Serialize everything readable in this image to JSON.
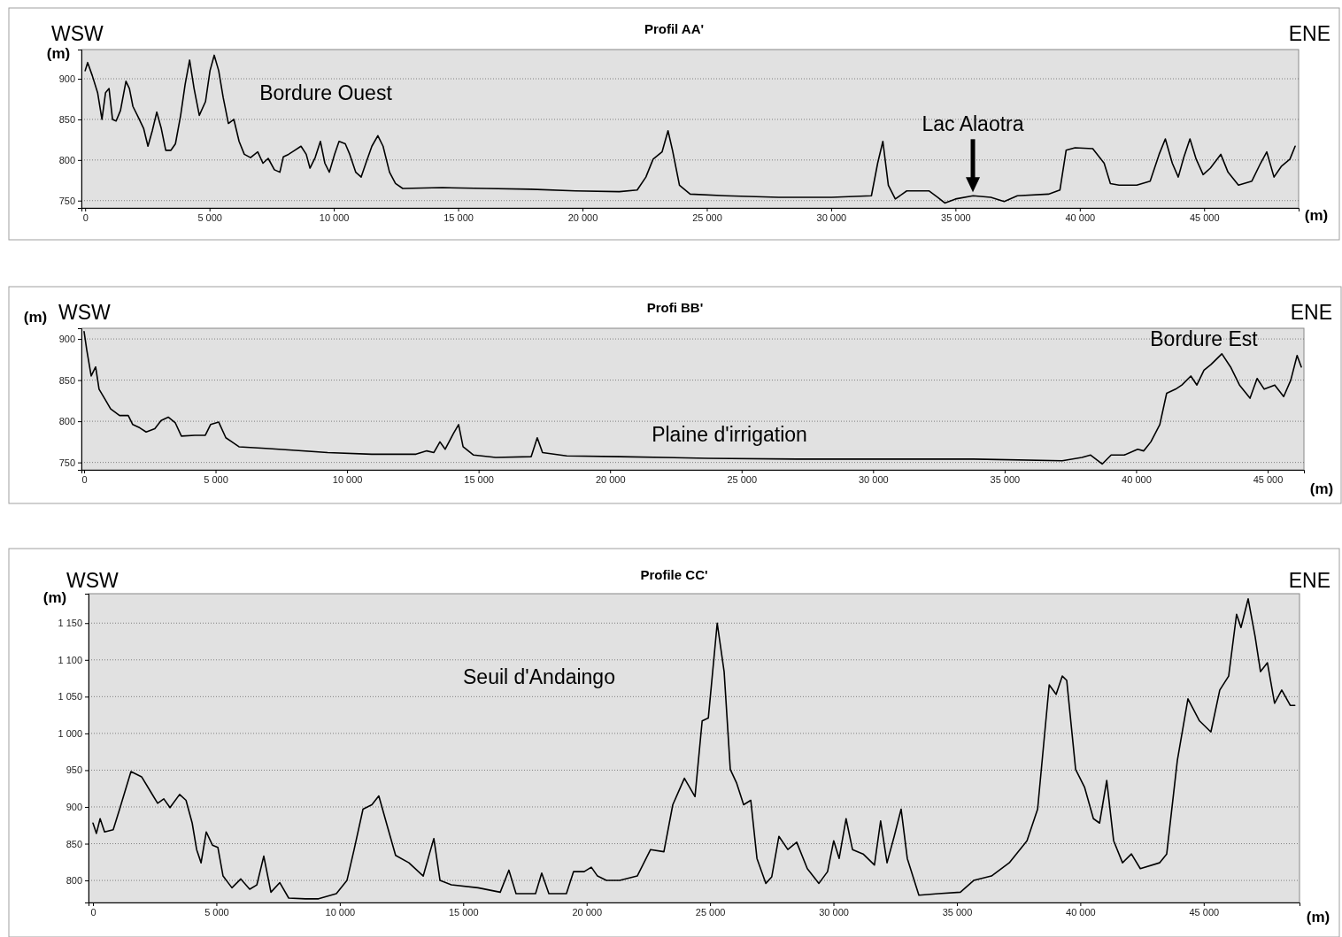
{
  "chart_data": [
    {
      "type": "line",
      "title": "Profil AA'",
      "ylabel": "(m)",
      "xlabel": "(m)",
      "grid": "y",
      "annotations": [
        "WSW",
        "ENE",
        "Bordure Ouest",
        {
          "text": "Lac Alaotra",
          "x": 35700,
          "y": 757
        }
      ],
      "xlim": [
        -150,
        48800
      ],
      "ylim": [
        741,
        936
      ],
      "xticks": [
        {
          "value": 0,
          "label": "0"
        },
        {
          "value": 5000,
          "label": "5 000"
        },
        {
          "value": 10000,
          "label": "10 000"
        },
        {
          "value": 15000,
          "label": "15 000"
        },
        {
          "value": 20000,
          "label": "20 000"
        },
        {
          "value": 25000,
          "label": "25 000"
        },
        {
          "value": 30000,
          "label": "30 000"
        },
        {
          "value": 35000,
          "label": "35 000"
        },
        {
          "value": 40000,
          "label": "40 000"
        },
        {
          "value": 45000,
          "label": "45 000"
        }
      ],
      "yticks": [
        750,
        800,
        850,
        900
      ],
      "series": [
        {
          "color": "#000000",
          "x": [
            0,
            100,
            285,
            500,
            675,
            820,
            960,
            1100,
            1245,
            1420,
            1640,
            1780,
            1920,
            2130,
            2350,
            2525,
            2700,
            2880,
            3060,
            3240,
            3450,
            3630,
            3840,
            4020,
            4200,
            4380,
            4590,
            4840,
            5020,
            5190,
            5370,
            5550,
            5760,
            5980,
            6190,
            6400,
            6650,
            6940,
            7150,
            7360,
            7610,
            7830,
            7970,
            8180,
            8430,
            8680,
            8890,
            9040,
            9250,
            9460,
            9640,
            9820,
            10030,
            10210,
            10460,
            10640,
            10880,
            11100,
            11310,
            11530,
            11770,
            11980,
            12240,
            12480,
            12770,
            14370,
            16150,
            17930,
            19710,
            21480,
            22200,
            22550,
            22840,
            23200,
            23440,
            23620,
            23900,
            24330,
            25750,
            27890,
            30020,
            31620,
            31870,
            32080,
            32300,
            32580,
            33040,
            33930,
            34290,
            34570,
            35000,
            35710,
            36420,
            36960,
            37490,
            38740,
            39200,
            39450,
            39810,
            40520,
            40980,
            41230,
            41580,
            42290,
            42830,
            43190,
            43440,
            43720,
            43960,
            44180,
            44430,
            44680,
            44960,
            45250,
            45670,
            45960,
            46380,
            46920,
            47270,
            47520,
            47810,
            48100,
            48450,
            48660
          ],
          "values": [
            910,
            920,
            904,
            883,
            850,
            883,
            888,
            850,
            848,
            861,
            897,
            888,
            866,
            853,
            839,
            817,
            836,
            859,
            839,
            812,
            812,
            820,
            855,
            893,
            923,
            888,
            855,
            872,
            910,
            929,
            910,
            877,
            845,
            850,
            823,
            807,
            803,
            810,
            796,
            802,
            788,
            785,
            804,
            807,
            812,
            817,
            807,
            790,
            803,
            823,
            796,
            785,
            807,
            823,
            820,
            807,
            785,
            779,
            798,
            817,
            830,
            817,
            785,
            771,
            765,
            766,
            765,
            764,
            762,
            761,
            763,
            779,
            801,
            810,
            836,
            812,
            769,
            758,
            756,
            754,
            754,
            756,
            796,
            823,
            769,
            752,
            762,
            762,
            754,
            747,
            752,
            756,
            754,
            749,
            756,
            758,
            763,
            812,
            815,
            814,
            796,
            771,
            769,
            769,
            774,
            807,
            826,
            796,
            779,
            803,
            826,
            801,
            782,
            790,
            807,
            785,
            769,
            774,
            796,
            810,
            779,
            792,
            801,
            817
          ]
        }
      ]
    },
    {
      "type": "line",
      "title": "Profi BB'",
      "ylabel": "(m)",
      "xlabel": "(m)",
      "grid": "y",
      "annotations": [
        "WSW",
        "ENE",
        "Bordure Est",
        "Plaine d'irrigation"
      ],
      "xlim": [
        -100,
        46380
      ],
      "ylim": [
        741,
        913
      ],
      "xticks": [
        {
          "value": 0,
          "label": "0"
        },
        {
          "value": 5000,
          "label": "5 000"
        },
        {
          "value": 10000,
          "label": "10 000"
        },
        {
          "value": 15000,
          "label": "15 000"
        },
        {
          "value": 20000,
          "label": "20 000"
        },
        {
          "value": 25000,
          "label": "25 000"
        },
        {
          "value": 30000,
          "label": "30 000"
        },
        {
          "value": 35000,
          "label": "35 000"
        },
        {
          "value": 40000,
          "label": "40 000"
        },
        {
          "value": 45000,
          "label": "45 000"
        }
      ],
      "yticks": [
        750,
        800,
        850,
        900
      ],
      "series": [
        {
          "color": "#000000",
          "x": [
            0,
            100,
            270,
            440,
            570,
            775,
            1010,
            1350,
            1680,
            1850,
            2120,
            2360,
            2690,
            2930,
            3200,
            3470,
            3700,
            4210,
            4610,
            4810,
            5120,
            5390,
            5620,
            5890,
            6900,
            7910,
            9260,
            10940,
            12620,
            13030,
            13300,
            13530,
            13730,
            14040,
            14240,
            14410,
            14810,
            15650,
            17000,
            17230,
            17430,
            18350,
            20360,
            23730,
            27100,
            30460,
            33830,
            37190,
            37940,
            38270,
            38710,
            39050,
            39550,
            40060,
            40290,
            40560,
            40900,
            41160,
            41500,
            41740,
            42080,
            42310,
            42580,
            42850,
            43260,
            43590,
            43930,
            44330,
            44600,
            44870,
            45270,
            45610,
            45880,
            46120,
            46280
          ],
          "values": [
            909,
            887,
            855,
            866,
            839,
            828,
            815,
            807,
            807,
            796,
            792,
            787,
            791,
            801,
            805,
            798,
            782,
            783,
            783,
            796,
            799,
            780,
            775,
            769,
            767,
            765,
            762,
            760,
            760,
            764,
            762,
            775,
            766,
            785,
            796,
            769,
            759,
            756,
            757,
            780,
            762,
            758,
            757,
            755,
            754,
            754,
            754,
            752,
            756,
            759,
            748,
            759,
            759,
            766,
            764,
            775,
            796,
            834,
            839,
            844,
            855,
            844,
            862,
            869,
            882,
            866,
            844,
            828,
            852,
            839,
            844,
            830,
            850,
            880,
            866
          ]
        }
      ]
    },
    {
      "type": "line",
      "title": "Profile CC'",
      "ylabel": "(m)",
      "xlabel": "(m)",
      "grid": "y",
      "annotations": [
        "WSW",
        "ENE",
        "Seuil d'Andaingo"
      ],
      "xlim": [
        -180,
        48880
      ],
      "ylim": [
        770,
        1190
      ],
      "xticks": [
        {
          "value": 0,
          "label": "0"
        },
        {
          "value": 5000,
          "label": "5 000"
        },
        {
          "value": 10000,
          "label": "10 000"
        },
        {
          "value": 15000,
          "label": "15 000"
        },
        {
          "value": 20000,
          "label": "20 000"
        },
        {
          "value": 25000,
          "label": "25 000"
        },
        {
          "value": 30000,
          "label": "30 000"
        },
        {
          "value": 35000,
          "label": "35 000"
        },
        {
          "value": 40000,
          "label": "40 000"
        },
        {
          "value": 45000,
          "label": "45 000"
        }
      ],
      "yticks": [
        800,
        850,
        900,
        950,
        {
          "value": 1000,
          "label": "1 000"
        },
        {
          "value": 1050,
          "label": "1 050"
        },
        {
          "value": 1100,
          "label": "1 100"
        },
        {
          "value": 1150,
          "label": "1 150"
        }
      ],
      "series": [
        {
          "color": "#000000",
          "x": [
            0,
            140,
            290,
            470,
            820,
            1080,
            1540,
            1970,
            2330,
            2620,
            2870,
            3120,
            3510,
            3770,
            4020,
            4200,
            4380,
            4590,
            4840,
            5060,
            5270,
            5630,
            5990,
            6350,
            6640,
            6920,
            7210,
            7570,
            7930,
            8610,
            9140,
            9860,
            10290,
            10580,
            10940,
            11300,
            11580,
            11940,
            12260,
            12800,
            13380,
            13630,
            13810,
            14060,
            14520,
            15600,
            16500,
            16850,
            17140,
            17930,
            18180,
            18470,
            19180,
            19470,
            19900,
            20190,
            20440,
            20800,
            21340,
            22050,
            22590,
            23130,
            23490,
            23960,
            24390,
            24680,
            24930,
            25290,
            25570,
            25820,
            26070,
            26360,
            26650,
            26900,
            27260,
            27500,
            27790,
            28150,
            28510,
            28940,
            29410,
            29760,
            30010,
            30230,
            30510,
            30770,
            31200,
            31660,
            31910,
            32170,
            32460,
            32740,
            32990,
            33460,
            34250,
            35140,
            35680,
            36400,
            37120,
            37840,
            38270,
            38740,
            39020,
            39270,
            39450,
            39810,
            40170,
            40530,
            40780,
            41070,
            41350,
            41710,
            42070,
            42430,
            43210,
            43500,
            43930,
            44360,
            44830,
            45290,
            45650,
            46010,
            46330,
            46510,
            46800,
            47080,
            47300,
            47580,
            47870,
            48160,
            48510,
            48690
          ],
          "values": [
            878,
            864,
            884,
            866,
            869,
            897,
            948,
            941,
            921,
            905,
            911,
            899,
            917,
            909,
            878,
            842,
            824,
            866,
            848,
            845,
            806,
            790,
            802,
            788,
            794,
            833,
            784,
            797,
            776,
            775,
            775,
            782,
            800,
            842,
            897,
            903,
            915,
            872,
            834,
            824,
            806,
            836,
            857,
            800,
            794,
            790,
            784,
            814,
            782,
            782,
            810,
            782,
            782,
            812,
            812,
            818,
            806,
            800,
            800,
            806,
            842,
            839,
            903,
            939,
            914,
            1017,
            1021,
            1150,
            1084,
            951,
            933,
            903,
            909,
            830,
            796,
            805,
            860,
            842,
            852,
            816,
            796,
            812,
            854,
            830,
            884,
            842,
            836,
            821,
            881,
            824,
            860,
            897,
            830,
            780,
            782,
            784,
            800,
            806,
            824,
            854,
            897,
            1066,
            1053,
            1078,
            1072,
            951,
            927,
            884,
            878,
            936,
            854,
            824,
            836,
            816,
            824,
            836,
            963,
            1047,
            1017,
            1002,
            1059,
            1078,
            1162,
            1144,
            1183,
            1132,
            1084,
            1096,
            1041,
            1059,
            1038,
            1038
          ]
        }
      ]
    }
  ]
}
